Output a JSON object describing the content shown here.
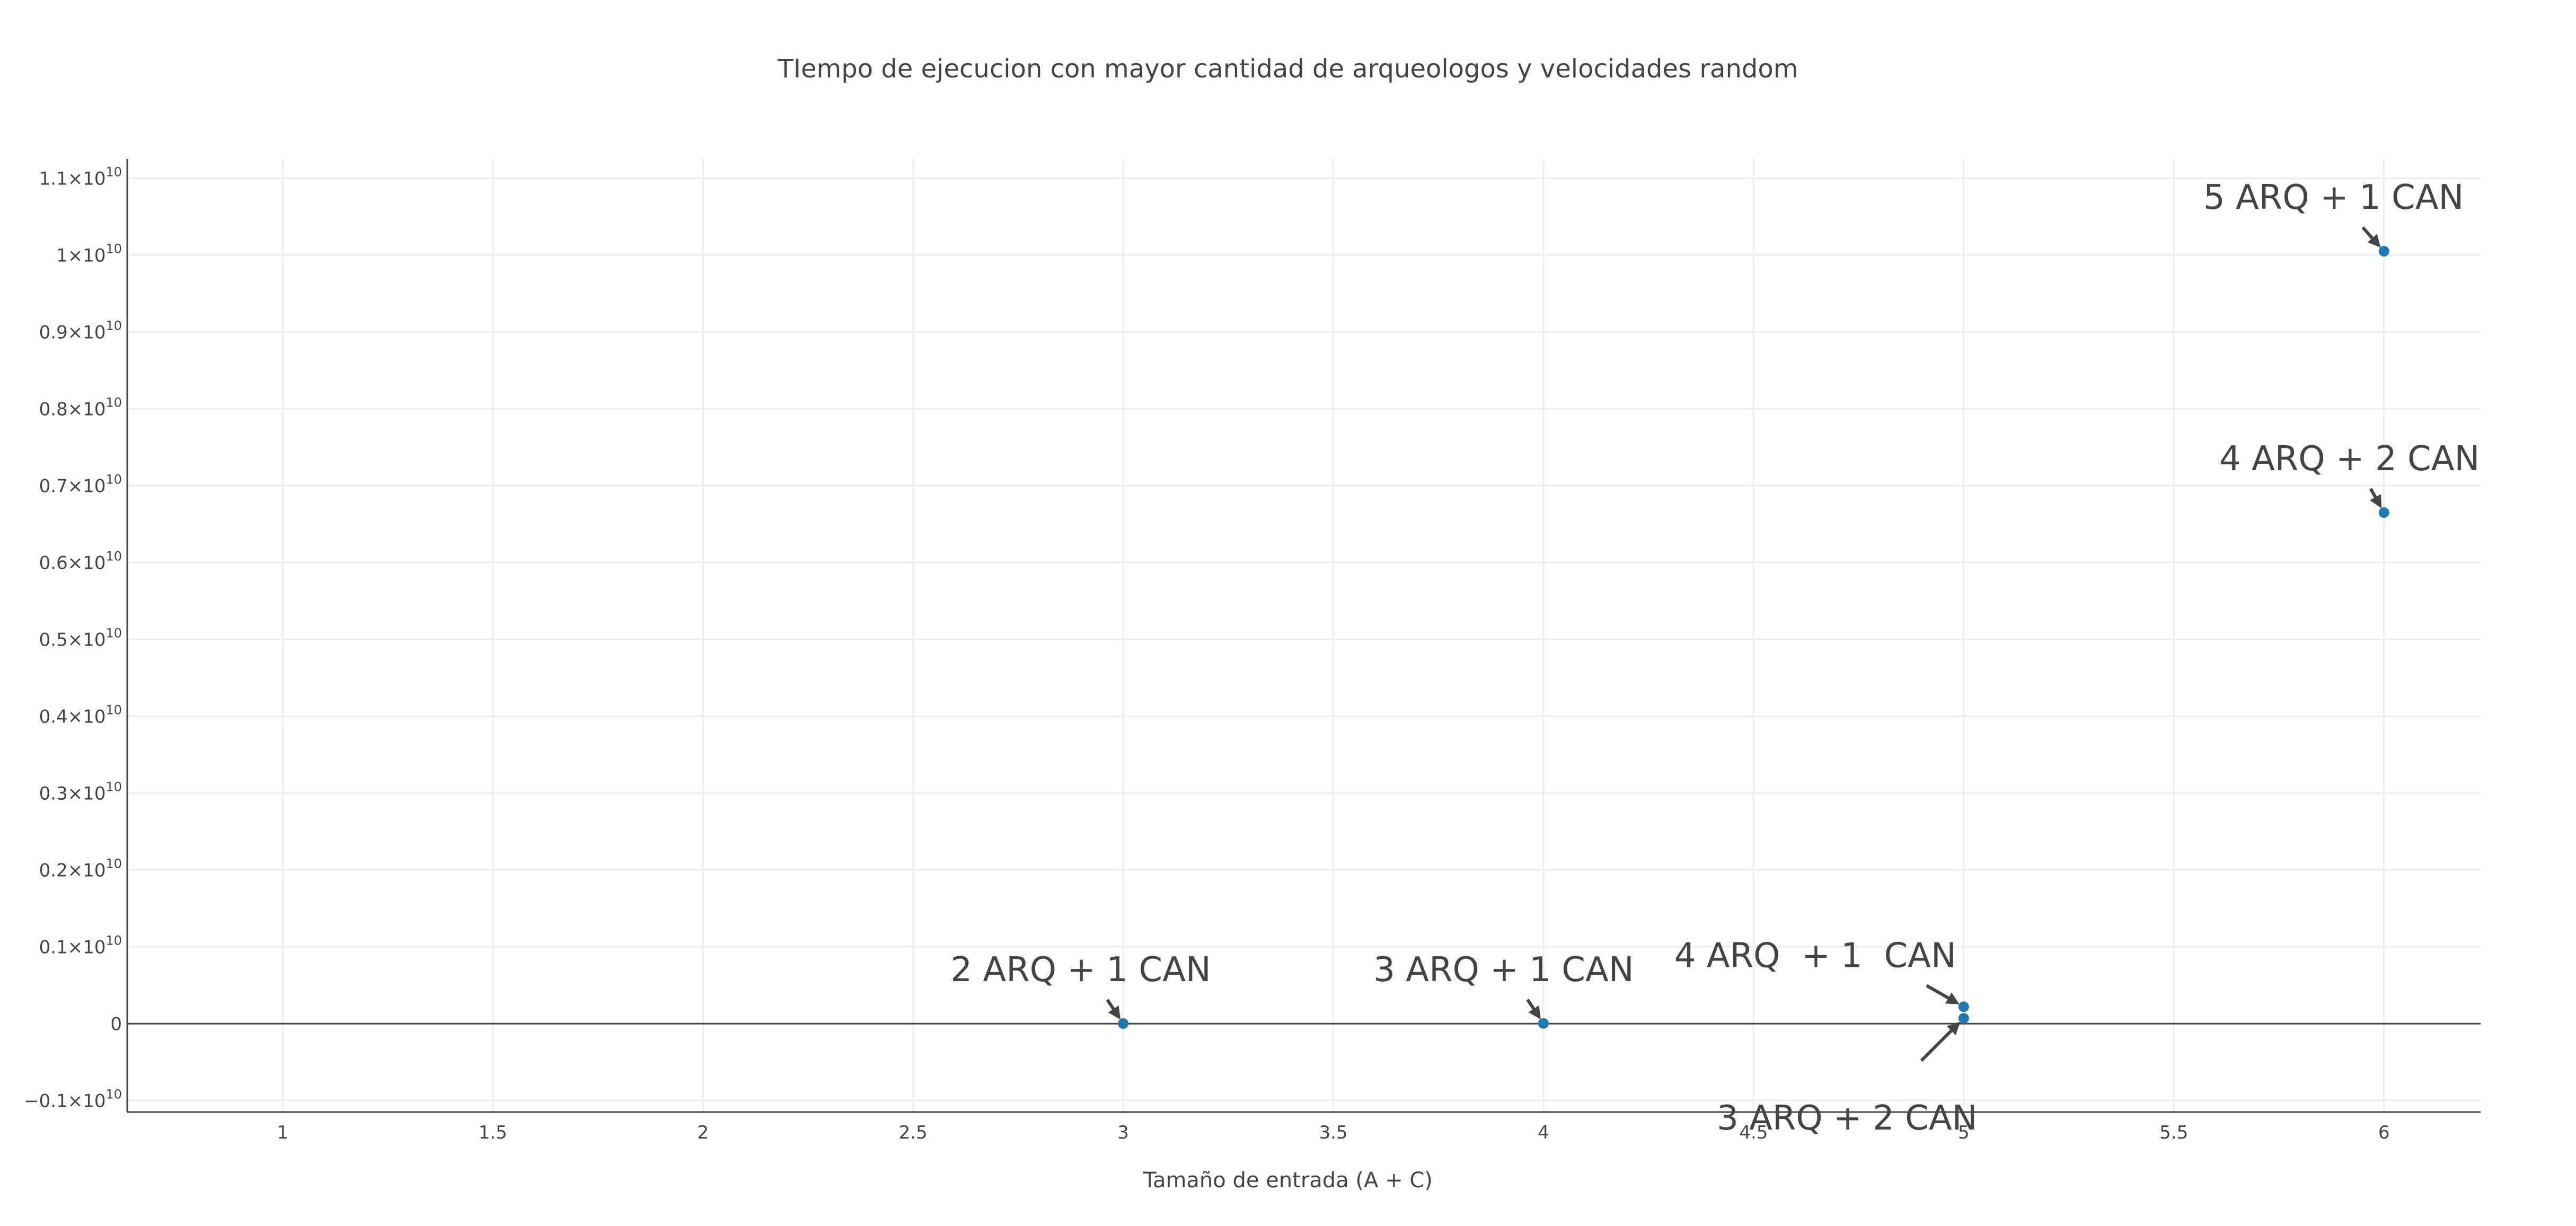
{
  "chart_data": {
    "type": "scatter",
    "title": "TIempo de ejecucion con mayor cantidad de arqueologos y velocidades random",
    "xlabel": "Tamaño de entrada (A + C)",
    "ylabel": "",
    "xlim": [
      0.63,
      6.23
    ],
    "ylim": [
      -1150000000.0,
      11250000000.0
    ],
    "grid": true,
    "legend": "none",
    "marker_color": "#1f77b4",
    "x_ticks": [
      {
        "value": 1,
        "label": "1"
      },
      {
        "value": 1.5,
        "label": "1.5"
      },
      {
        "value": 2,
        "label": "2"
      },
      {
        "value": 2.5,
        "label": "2.5"
      },
      {
        "value": 3,
        "label": "3"
      },
      {
        "value": 3.5,
        "label": "3.5"
      },
      {
        "value": 4,
        "label": "4"
      },
      {
        "value": 4.5,
        "label": "4.5"
      },
      {
        "value": 5,
        "label": "5"
      },
      {
        "value": 5.5,
        "label": "5.5"
      },
      {
        "value": 6,
        "label": "6"
      }
    ],
    "y_ticks": [
      {
        "value": -1000000000.0,
        "label": "−0.1×10",
        "exp": "10"
      },
      {
        "value": 0,
        "label": "0",
        "exp": ""
      },
      {
        "value": 1000000000.0,
        "label": "0.1×10",
        "exp": "10"
      },
      {
        "value": 2000000000.0,
        "label": "0.2×10",
        "exp": "10"
      },
      {
        "value": 3000000000.0,
        "label": "0.3×10",
        "exp": "10"
      },
      {
        "value": 4000000000.0,
        "label": "0.4×10",
        "exp": "10"
      },
      {
        "value": 5000000000.0,
        "label": "0.5×10",
        "exp": "10"
      },
      {
        "value": 6000000000.0,
        "label": "0.6×10",
        "exp": "10"
      },
      {
        "value": 7000000000.0,
        "label": "0.7×10",
        "exp": "10"
      },
      {
        "value": 8000000000.0,
        "label": "0.8×10",
        "exp": "10"
      },
      {
        "value": 9000000000.0,
        "label": "0.9×10",
        "exp": "10"
      },
      {
        "value": 10000000000.0,
        "label": "1×10",
        "exp": "10"
      },
      {
        "value": 11000000000.0,
        "label": "1.1×10",
        "exp": "10"
      }
    ],
    "points": [
      {
        "x": 3,
        "y": 1000000
      },
      {
        "x": 4,
        "y": 3000000
      },
      {
        "x": 5,
        "y": 220000000
      },
      {
        "x": 5,
        "y": 70000000
      },
      {
        "x": 6,
        "y": 6650000000
      },
      {
        "x": 6,
        "y": 10050000000
      }
    ],
    "annotations": [
      {
        "text": "2 ARQ + 1 CAN",
        "x": 3,
        "y": 1000000
      },
      {
        "text": "3 ARQ + 1 CAN",
        "x": 4,
        "y": 3000000
      },
      {
        "text": "4 ARQ  + 1  CAN",
        "x": 5,
        "y": 220000000
      },
      {
        "text": "3 ARQ + 2 CAN",
        "x": 5,
        "y": 70000000
      },
      {
        "text": "4 ARQ + 2 CAN",
        "x": 6,
        "y": 6650000000
      },
      {
        "text": "5 ARQ + 1 CAN",
        "x": 6,
        "y": 10050000000
      }
    ]
  }
}
